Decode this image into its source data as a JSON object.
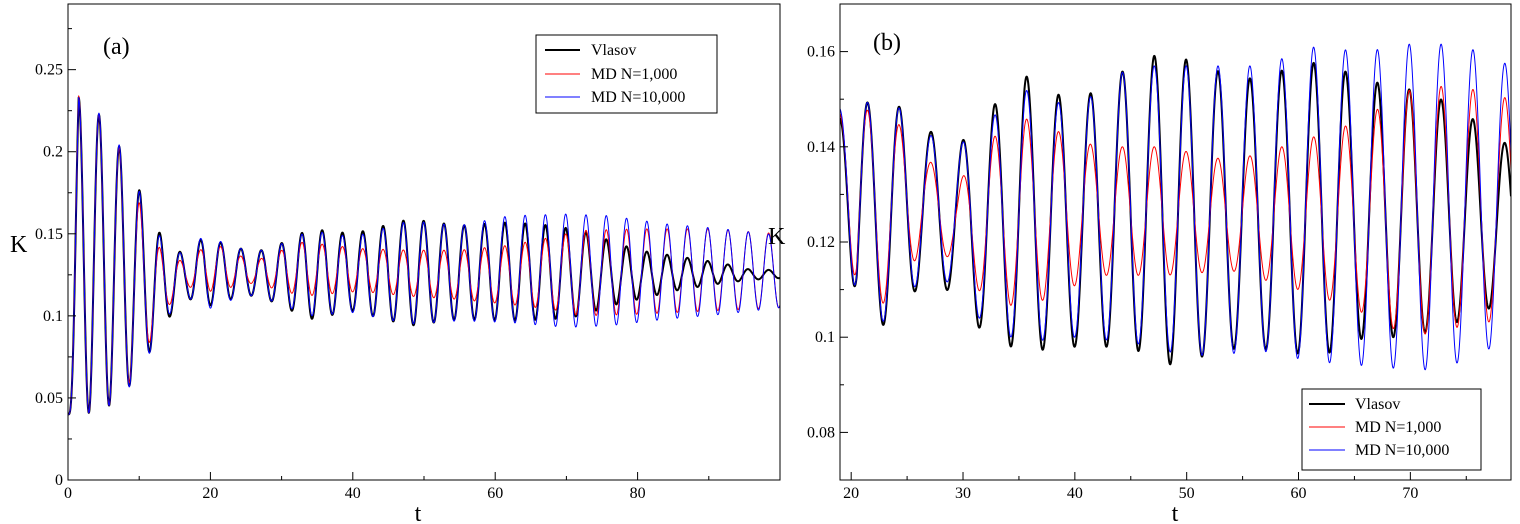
{
  "colors": {
    "vlasov": "#000000",
    "md1000": "#ff0000",
    "md10000": "#0000ff"
  },
  "chart_data": [
    {
      "type": "line",
      "panel_label": "(a)",
      "xlabel": "t",
      "ylabel": "K",
      "xlim": [
        0,
        100
      ],
      "ylim": [
        0,
        0.29
      ],
      "xticks": [
        0,
        20,
        40,
        60,
        80
      ],
      "yticks": [
        0,
        0.05,
        0.1,
        0.15,
        0.2,
        0.25
      ],
      "ytick_labels": [
        "0",
        "0.05",
        "0.1",
        "0.15",
        "0.2",
        "0.25"
      ],
      "grid": false,
      "legend_position": "top-right",
      "period": 2.85,
      "series": [
        {
          "name": "Vlasov",
          "color": "#000000",
          "envelope": [
            {
              "t": 0,
              "min": 0.04,
              "max": 0.04
            },
            {
              "t": 1.5,
              "min": 0.04,
              "max": 0.233
            },
            {
              "t": 4.5,
              "min": 0.042,
              "max": 0.222
            },
            {
              "t": 7.5,
              "min": 0.05,
              "max": 0.201
            },
            {
              "t": 10.5,
              "min": 0.07,
              "max": 0.172
            },
            {
              "t": 13.5,
              "min": 0.095,
              "max": 0.145
            },
            {
              "t": 16.5,
              "min": 0.112,
              "max": 0.137
            },
            {
              "t": 19,
              "min": 0.105,
              "max": 0.148
            },
            {
              "t": 25,
              "min": 0.113,
              "max": 0.14
            },
            {
              "t": 28,
              "min": 0.11,
              "max": 0.14
            },
            {
              "t": 34,
              "min": 0.098,
              "max": 0.153
            },
            {
              "t": 40,
              "min": 0.103,
              "max": 0.15
            },
            {
              "t": 48,
              "min": 0.094,
              "max": 0.159
            },
            {
              "t": 55,
              "min": 0.098,
              "max": 0.155
            },
            {
              "t": 62,
              "min": 0.097,
              "max": 0.157
            },
            {
              "t": 68,
              "min": 0.098,
              "max": 0.155
            },
            {
              "t": 72,
              "min": 0.1,
              "max": 0.152
            },
            {
              "t": 76,
              "min": 0.106,
              "max": 0.146
            },
            {
              "t": 80,
              "min": 0.11,
              "max": 0.14
            },
            {
              "t": 86,
              "min": 0.116,
              "max": 0.136
            },
            {
              "t": 92,
              "min": 0.12,
              "max": 0.132
            },
            {
              "t": 96,
              "min": 0.122,
              "max": 0.128
            },
            {
              "t": 100,
              "min": 0.123,
              "max": 0.128
            }
          ]
        },
        {
          "name": "MD N=1,000",
          "color": "#ff0000",
          "envelope": [
            {
              "t": 0,
              "min": 0.04,
              "max": 0.04
            },
            {
              "t": 1.5,
              "min": 0.04,
              "max": 0.234
            },
            {
              "t": 4.5,
              "min": 0.042,
              "max": 0.222
            },
            {
              "t": 7.5,
              "min": 0.05,
              "max": 0.2
            },
            {
              "t": 10.5,
              "min": 0.075,
              "max": 0.163
            },
            {
              "t": 13.5,
              "min": 0.103,
              "max": 0.136
            },
            {
              "t": 16.5,
              "min": 0.118,
              "max": 0.133
            },
            {
              "t": 20,
              "min": 0.115,
              "max": 0.145
            },
            {
              "t": 26,
              "min": 0.12,
              "max": 0.133
            },
            {
              "t": 33,
              "min": 0.112,
              "max": 0.145
            },
            {
              "t": 41,
              "min": 0.115,
              "max": 0.141
            },
            {
              "t": 48,
              "min": 0.112,
              "max": 0.14
            },
            {
              "t": 55,
              "min": 0.11,
              "max": 0.14
            },
            {
              "t": 62,
              "min": 0.107,
              "max": 0.143
            },
            {
              "t": 68,
              "min": 0.104,
              "max": 0.148
            },
            {
              "t": 72,
              "min": 0.1,
              "max": 0.152
            },
            {
              "t": 80,
              "min": 0.101,
              "max": 0.153
            },
            {
              "t": 90,
              "min": 0.103,
              "max": 0.153
            },
            {
              "t": 100,
              "min": 0.105,
              "max": 0.15
            }
          ]
        },
        {
          "name": "MD N=10,000",
          "color": "#0000ff",
          "envelope": [
            {
              "t": 0,
              "min": 0.04,
              "max": 0.04
            },
            {
              "t": 1.5,
              "min": 0.04,
              "max": 0.233
            },
            {
              "t": 4.5,
              "min": 0.042,
              "max": 0.223
            },
            {
              "t": 7.5,
              "min": 0.05,
              "max": 0.202
            },
            {
              "t": 10.5,
              "min": 0.068,
              "max": 0.171
            },
            {
              "t": 13.5,
              "min": 0.097,
              "max": 0.143
            },
            {
              "t": 16.5,
              "min": 0.113,
              "max": 0.137
            },
            {
              "t": 19,
              "min": 0.103,
              "max": 0.149
            },
            {
              "t": 25,
              "min": 0.113,
              "max": 0.14
            },
            {
              "t": 28,
              "min": 0.11,
              "max": 0.14
            },
            {
              "t": 34,
              "min": 0.1,
              "max": 0.152
            },
            {
              "t": 40,
              "min": 0.102,
              "max": 0.148
            },
            {
              "t": 48,
              "min": 0.095,
              "max": 0.158
            },
            {
              "t": 55,
              "min": 0.097,
              "max": 0.155
            },
            {
              "t": 62,
              "min": 0.096,
              "max": 0.161
            },
            {
              "t": 70,
              "min": 0.093,
              "max": 0.162
            },
            {
              "t": 76,
              "min": 0.094,
              "max": 0.161
            },
            {
              "t": 84,
              "min": 0.098,
              "max": 0.156
            },
            {
              "t": 92,
              "min": 0.101,
              "max": 0.153
            },
            {
              "t": 100,
              "min": 0.105,
              "max": 0.149
            }
          ]
        }
      ]
    },
    {
      "type": "line",
      "panel_label": "(b)",
      "xlabel": "t",
      "ylabel": "K",
      "xlim": [
        19,
        79
      ],
      "ylim": [
        0.07,
        0.17
      ],
      "xticks": [
        20,
        30,
        40,
        50,
        60,
        70
      ],
      "yticks": [
        0.08,
        0.1,
        0.12,
        0.14,
        0.16
      ],
      "ytick_labels": [
        "0.08",
        "0.1",
        "0.12",
        "0.14",
        "0.16"
      ],
      "grid": false,
      "legend_position": "bottom-right",
      "period": 2.85,
      "series": [
        {
          "name": "Vlasov",
          "color": "#000000",
          "envelope": [
            {
              "t": 19,
              "min": 0.146,
              "max": 0.146
            },
            {
              "t": 20.5,
              "min": 0.101,
              "max": 0.149
            },
            {
              "t": 23.5,
              "min": 0.103,
              "max": 0.15
            },
            {
              "t": 26.5,
              "min": 0.112,
              "max": 0.144
            },
            {
              "t": 29.5,
              "min": 0.109,
              "max": 0.14
            },
            {
              "t": 32,
              "min": 0.1,
              "max": 0.147
            },
            {
              "t": 35.5,
              "min": 0.097,
              "max": 0.155
            },
            {
              "t": 40,
              "min": 0.098,
              "max": 0.149
            },
            {
              "t": 45,
              "min": 0.098,
              "max": 0.157
            },
            {
              "t": 48,
              "min": 0.094,
              "max": 0.16
            },
            {
              "t": 55,
              "min": 0.098,
              "max": 0.154
            },
            {
              "t": 62,
              "min": 0.096,
              "max": 0.158
            },
            {
              "t": 66,
              "min": 0.1,
              "max": 0.154
            },
            {
              "t": 70,
              "min": 0.1,
              "max": 0.152
            },
            {
              "t": 74,
              "min": 0.103,
              "max": 0.149
            },
            {
              "t": 77,
              "min": 0.106,
              "max": 0.143
            },
            {
              "t": 79,
              "min": 0.108,
              "max": 0.14
            }
          ]
        },
        {
          "name": "MD N=1,000",
          "color": "#ff0000",
          "envelope": [
            {
              "t": 19,
              "min": 0.147,
              "max": 0.147
            },
            {
              "t": 20.5,
              "min": 0.104,
              "max": 0.148
            },
            {
              "t": 23.5,
              "min": 0.108,
              "max": 0.147
            },
            {
              "t": 26.5,
              "min": 0.119,
              "max": 0.138
            },
            {
              "t": 29.5,
              "min": 0.116,
              "max": 0.132
            },
            {
              "t": 32,
              "min": 0.108,
              "max": 0.141
            },
            {
              "t": 35.5,
              "min": 0.106,
              "max": 0.146
            },
            {
              "t": 42,
              "min": 0.113,
              "max": 0.14
            },
            {
              "t": 48,
              "min": 0.113,
              "max": 0.14
            },
            {
              "t": 54,
              "min": 0.114,
              "max": 0.137
            },
            {
              "t": 60,
              "min": 0.11,
              "max": 0.141
            },
            {
              "t": 65,
              "min": 0.106,
              "max": 0.145
            },
            {
              "t": 70,
              "min": 0.1,
              "max": 0.152
            },
            {
              "t": 74,
              "min": 0.102,
              "max": 0.153
            },
            {
              "t": 79,
              "min": 0.104,
              "max": 0.15
            }
          ]
        },
        {
          "name": "MD N=10,000",
          "color": "#0000ff",
          "envelope": [
            {
              "t": 19,
              "min": 0.148,
              "max": 0.148
            },
            {
              "t": 20.5,
              "min": 0.101,
              "max": 0.149
            },
            {
              "t": 23.5,
              "min": 0.104,
              "max": 0.15
            },
            {
              "t": 26.5,
              "min": 0.113,
              "max": 0.143
            },
            {
              "t": 29.5,
              "min": 0.111,
              "max": 0.14
            },
            {
              "t": 32,
              "min": 0.102,
              "max": 0.145
            },
            {
              "t": 35.5,
              "min": 0.099,
              "max": 0.152
            },
            {
              "t": 40,
              "min": 0.1,
              "max": 0.148
            },
            {
              "t": 45,
              "min": 0.099,
              "max": 0.157
            },
            {
              "t": 50,
              "min": 0.096,
              "max": 0.157
            },
            {
              "t": 57,
              "min": 0.097,
              "max": 0.157
            },
            {
              "t": 61,
              "min": 0.095,
              "max": 0.161
            },
            {
              "t": 66,
              "min": 0.094,
              "max": 0.16
            },
            {
              "t": 71,
              "min": 0.093,
              "max": 0.162
            },
            {
              "t": 75,
              "min": 0.095,
              "max": 0.161
            },
            {
              "t": 79,
              "min": 0.1,
              "max": 0.157
            }
          ]
        }
      ]
    }
  ]
}
